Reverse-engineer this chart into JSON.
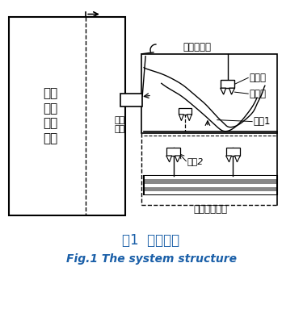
{
  "title_cn": "图1  系统结构",
  "title_en": "Fig.1 The system structure",
  "bg_color": "#ffffff",
  "line_color": "#000000",
  "labels": {
    "machine": "回转\n式水\n泥包\n装机",
    "nozzle": "出料\n喷嘴",
    "arm": "套袋机械臂",
    "hand": "机械手",
    "valve_bag": "阀口袋",
    "sucker1": "吸盘1",
    "sucker2": "吸盘2",
    "auto_device": "自动套袋装置"
  },
  "title_cn_color": "#1a5fa8",
  "title_en_color": "#1a5fa8"
}
